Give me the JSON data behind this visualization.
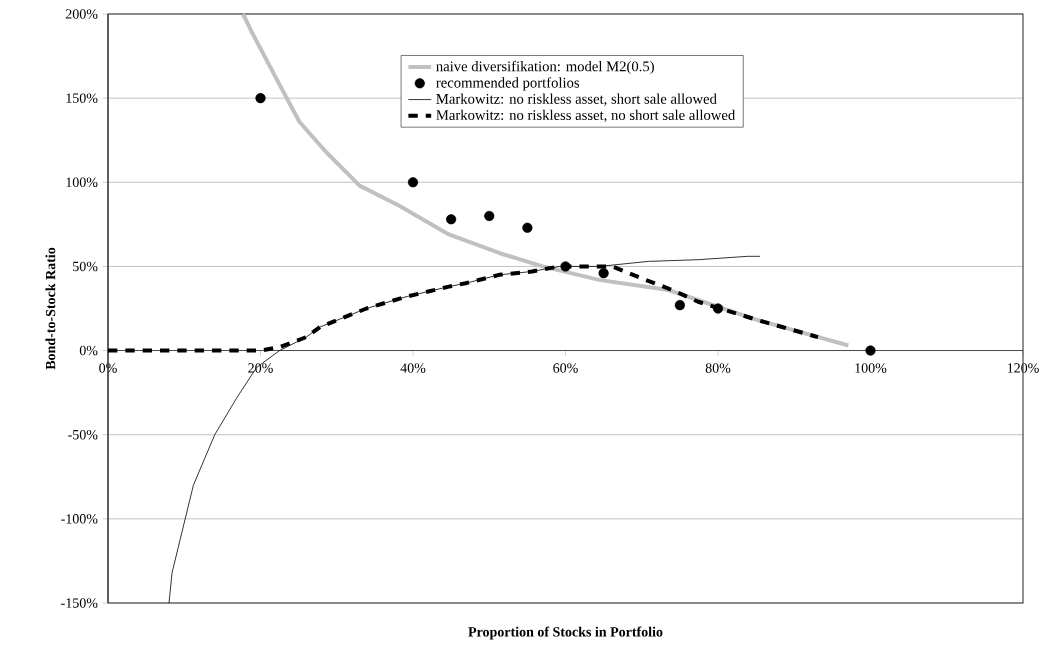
{
  "chart_data": {
    "type": "line",
    "xlabel": "Proportion of Stocks in Portfolio",
    "ylabel": "Bond-to-Stock Ratio",
    "xlim": [
      0,
      120
    ],
    "ylim": [
      -150,
      200
    ],
    "xticks": [
      {
        "value": 0,
        "label": "0%"
      },
      {
        "value": 20,
        "label": "20%"
      },
      {
        "value": 40,
        "label": "40%"
      },
      {
        "value": 60,
        "label": "60%"
      },
      {
        "value": 80,
        "label": "80%"
      },
      {
        "value": 100,
        "label": "100%"
      },
      {
        "value": 120,
        "label": "120%"
      }
    ],
    "yticks": [
      {
        "value": -150,
        "label": "-150%"
      },
      {
        "value": -100,
        "label": "-100%"
      },
      {
        "value": -50,
        "label": "-50%"
      },
      {
        "value": 0,
        "label": "0%"
      },
      {
        "value": 50,
        "label": "50%"
      },
      {
        "value": 100,
        "label": "100%"
      },
      {
        "value": 150,
        "label": "150%"
      },
      {
        "value": 200,
        "label": "200%"
      }
    ],
    "grid": "y",
    "legend": "top right",
    "series": [
      {
        "name": "naive diversifikation: model M2(0.5)",
        "color": "#c0c0c0",
        "line_style": "solid",
        "marker": "none",
        "x": [
          17.7,
          19,
          22.5,
          25.1,
          28.6,
          33,
          38.2,
          44.7,
          51.3,
          57,
          64.4,
          73.5,
          81.3,
          85.3,
          97.1
        ],
        "values": [
          200,
          188,
          158,
          136,
          118,
          98,
          86,
          69,
          58,
          50,
          42,
          36,
          24,
          18,
          3
        ]
      },
      {
        "name": "recommended portfolios",
        "type": "scatter",
        "color": "#000000",
        "marker": "circle",
        "x": [
          20,
          40,
          45,
          50,
          55,
          60,
          65,
          75,
          80,
          100
        ],
        "values": [
          150,
          100,
          78,
          80,
          73,
          50,
          46,
          27,
          25,
          0
        ]
      },
      {
        "name": "Markowitz: no riskless asset, short sale allowed",
        "color": "#000000",
        "line_style": "solid",
        "marker": "none",
        "x": [
          8,
          8.4,
          11.2,
          14,
          16.9,
          19.5,
          22.5,
          26,
          27.8,
          33.9,
          39.1,
          44.7,
          46.9,
          51.3,
          55.6,
          59.2,
          64.4,
          70.9,
          77.4,
          83.9,
          85.5
        ],
        "values": [
          -150,
          -132,
          -80,
          -50,
          -28,
          -10,
          0,
          8,
          14,
          25,
          32,
          38,
          40,
          45,
          47,
          50,
          50,
          53,
          54,
          56,
          56
        ]
      },
      {
        "name": "Markowitz: no riskless asset, no short sale allowed",
        "color": "#000000",
        "line_style": "dashed",
        "marker": "none",
        "x": [
          0,
          20,
          22.5,
          26,
          27.8,
          33.9,
          39.1,
          44.7,
          46.9,
          51.3,
          55.6,
          59.2,
          64.4,
          66.1,
          70.5,
          74,
          77.4,
          81.7,
          85.3,
          89.2,
          93.1
        ],
        "values": [
          0,
          0,
          2,
          8,
          14,
          25,
          32,
          38,
          40,
          45,
          47,
          50,
          50,
          50,
          42,
          36,
          29,
          23,
          18,
          13,
          8
        ]
      }
    ]
  }
}
